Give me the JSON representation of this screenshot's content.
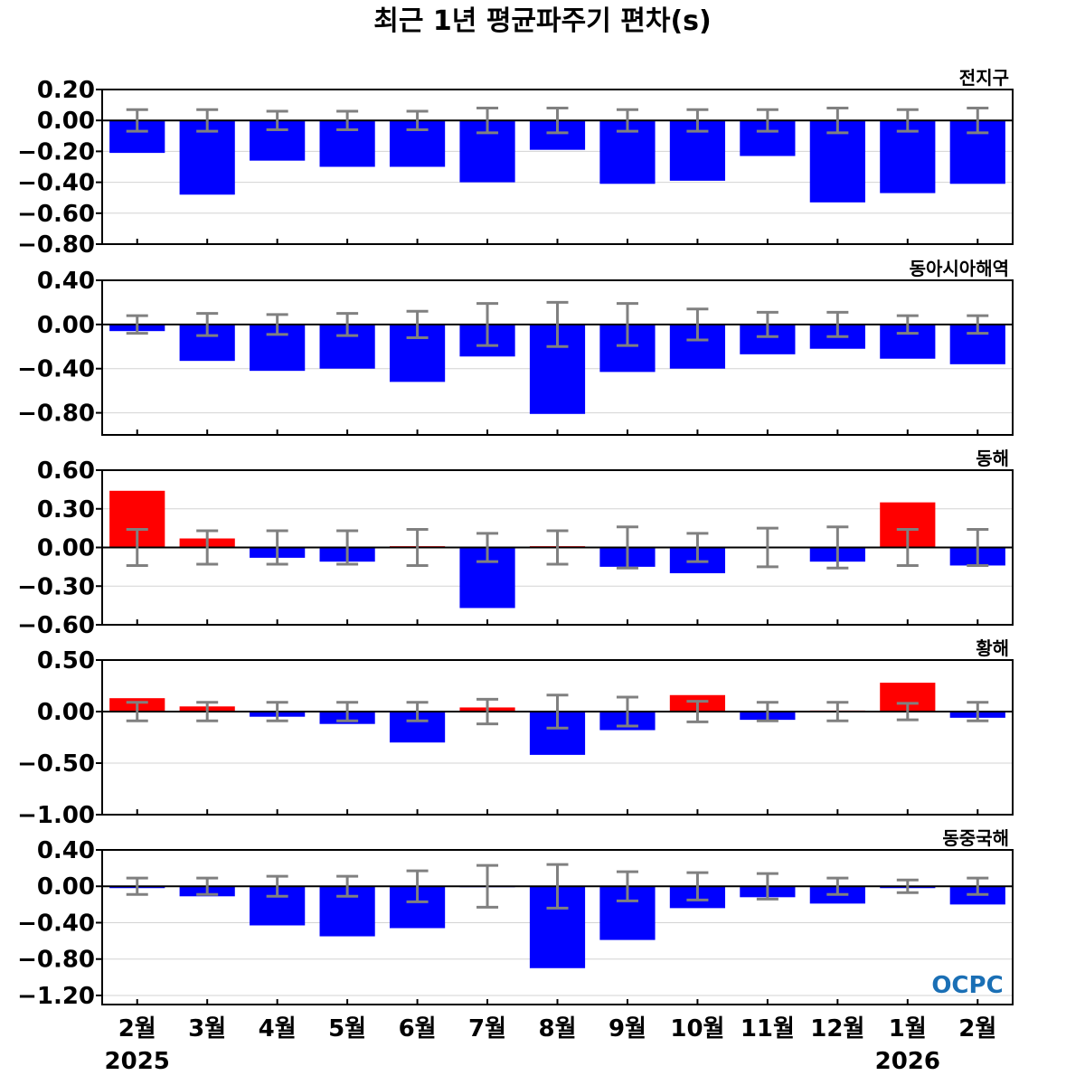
{
  "title": "최근 1년 평균파주기 편차(s)",
  "logo": "OCPC",
  "colors": {
    "negative": "#0000ff",
    "positive": "#ff0000",
    "error_bar": "#808080",
    "zero_line": "#000000",
    "grid": "#d3d3d3"
  },
  "chart_data": {
    "type": "bar",
    "categories": [
      "2월",
      "3월",
      "4월",
      "5월",
      "6월",
      "7월",
      "8월",
      "9월",
      "10월",
      "11월",
      "12월",
      "1월",
      "2월"
    ],
    "year_labels": [
      {
        "index": 0,
        "text": "2025"
      },
      {
        "index": 11,
        "text": "2026"
      }
    ],
    "grid": "horizontal",
    "panels": [
      {
        "name": "전지구",
        "ylim": [
          -0.8,
          0.2
        ],
        "yticks": [
          0.2,
          0.0,
          -0.2,
          -0.4,
          -0.6,
          -0.8
        ],
        "ytick_labels": [
          "0.20",
          "0.00",
          "−0.20",
          "−0.40",
          "−0.60",
          "−0.80"
        ],
        "values": [
          -0.21,
          -0.48,
          -0.26,
          -0.3,
          -0.3,
          -0.4,
          -0.19,
          -0.41,
          -0.39,
          -0.23,
          -0.53,
          -0.47,
          -0.41
        ],
        "errors": [
          0.07,
          0.07,
          0.06,
          0.06,
          0.06,
          0.08,
          0.08,
          0.07,
          0.07,
          0.07,
          0.08,
          0.07,
          0.08
        ]
      },
      {
        "name": "동아시아해역",
        "ylim": [
          -1.0,
          0.4
        ],
        "yticks": [
          0.4,
          0.0,
          -0.4,
          -0.8
        ],
        "ytick_labels": [
          "0.40",
          "0.00",
          "−0.40",
          "−0.80"
        ],
        "values": [
          -0.06,
          -0.33,
          -0.42,
          -0.4,
          -0.52,
          -0.29,
          -0.81,
          -0.43,
          -0.4,
          -0.27,
          -0.22,
          -0.31,
          -0.36
        ],
        "errors": [
          0.08,
          0.1,
          0.09,
          0.1,
          0.12,
          0.19,
          0.2,
          0.19,
          0.14,
          0.11,
          0.11,
          0.08,
          0.08
        ]
      },
      {
        "name": "동해",
        "ylim": [
          -0.6,
          0.6
        ],
        "yticks": [
          0.6,
          0.3,
          0.0,
          -0.3,
          -0.6
        ],
        "ytick_labels": [
          "0.60",
          "0.30",
          "0.00",
          "−0.30",
          "−0.60"
        ],
        "values": [
          0.44,
          0.07,
          -0.08,
          -0.11,
          0.01,
          -0.47,
          0.01,
          -0.15,
          -0.2,
          0.0,
          -0.11,
          0.35,
          -0.14
        ],
        "errors": [
          0.14,
          0.13,
          0.13,
          0.13,
          0.14,
          0.11,
          0.13,
          0.16,
          0.11,
          0.15,
          0.16,
          0.14,
          0.14
        ]
      },
      {
        "name": "황해",
        "ylim": [
          -1.0,
          0.5
        ],
        "yticks": [
          0.5,
          0.0,
          -0.5,
          -1.0
        ],
        "ytick_labels": [
          "0.50",
          "0.00",
          "−0.50",
          "−1.00"
        ],
        "values": [
          0.13,
          0.05,
          -0.05,
          -0.12,
          -0.3,
          0.04,
          -0.42,
          -0.18,
          0.16,
          -0.08,
          0.01,
          0.28,
          -0.06
        ],
        "errors": [
          0.09,
          0.09,
          0.09,
          0.09,
          0.09,
          0.12,
          0.16,
          0.14,
          0.1,
          0.09,
          0.09,
          0.08,
          0.09
        ]
      },
      {
        "name": "동중국해",
        "ylim": [
          -1.3,
          0.4
        ],
        "yticks": [
          0.4,
          0.0,
          -0.4,
          -0.8,
          -1.2
        ],
        "ytick_labels": [
          "0.40",
          "0.00",
          "−0.40",
          "−0.80",
          "−1.20"
        ],
        "values": [
          -0.02,
          -0.11,
          -0.43,
          -0.55,
          -0.46,
          -0.01,
          -0.9,
          -0.59,
          -0.24,
          -0.12,
          -0.19,
          -0.02,
          -0.2
        ],
        "errors": [
          0.09,
          0.09,
          0.11,
          0.11,
          0.17,
          0.23,
          0.24,
          0.16,
          0.15,
          0.14,
          0.09,
          0.07,
          0.09
        ]
      }
    ]
  }
}
